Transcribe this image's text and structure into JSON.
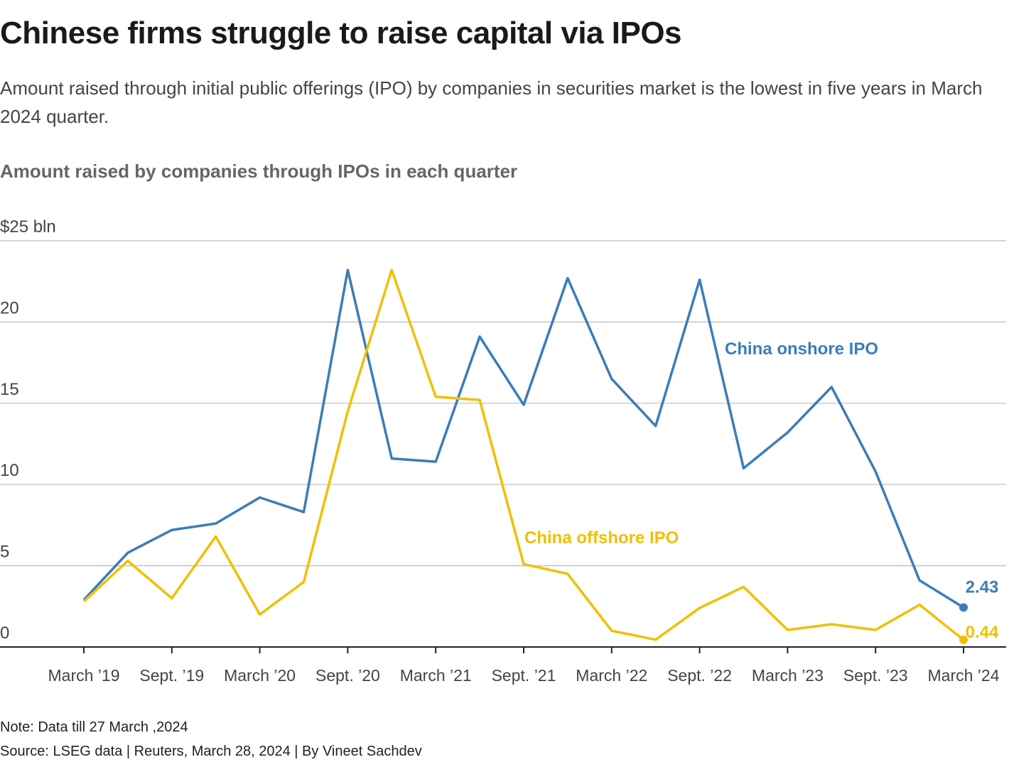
{
  "chart_data": {
    "type": "line",
    "title": "Chinese firms struggle to raise capital via IPOs",
    "subtitle": "Amount raised through initial public offerings (IPO) by companies in securities market is the lowest in five years in March 2024 quarter.",
    "chart_title": "Amount raised by companies through IPOs in each quarter",
    "categories": [
      "March ’19",
      null,
      "Sept. ’19",
      null,
      "March ’20",
      null,
      "Sept. ’20",
      null,
      "March ’21",
      null,
      "Sept. ’21",
      null,
      "March ’22",
      null,
      "Sept. ’22",
      null,
      "March ’23",
      null,
      "Sept. ’23",
      null,
      "March ’24"
    ],
    "series": [
      {
        "name": "China onshore IPO",
        "color": "#3a7dbb",
        "values": [
          2.9,
          5.8,
          7.2,
          7.6,
          9.2,
          8.3,
          23.2,
          11.6,
          11.4,
          19.1,
          14.9,
          22.7,
          16.5,
          13.6,
          22.6,
          11.0,
          13.2,
          16.0,
          10.8,
          4.1,
          2.43
        ]
      },
      {
        "name": "China offshore IPO",
        "color": "#f0c000",
        "values": [
          2.8,
          5.3,
          3.0,
          6.8,
          2.0,
          4.0,
          14.5,
          23.2,
          15.4,
          15.2,
          5.1,
          4.5,
          1.0,
          0.45,
          2.4,
          3.7,
          1.05,
          1.4,
          1.05,
          2.6,
          0.44
        ]
      }
    ],
    "ylim": [
      0,
      25
    ],
    "yticks": [
      0,
      5,
      10,
      15,
      20,
      {
        "value": 25,
        "label": "$25 bln"
      }
    ],
    "grid": true,
    "note": "Note: Data till 27 March ,2024",
    "source": "Source: LSEG data | Reuters, March 28, 2024 | By Vineet Sachdev"
  }
}
